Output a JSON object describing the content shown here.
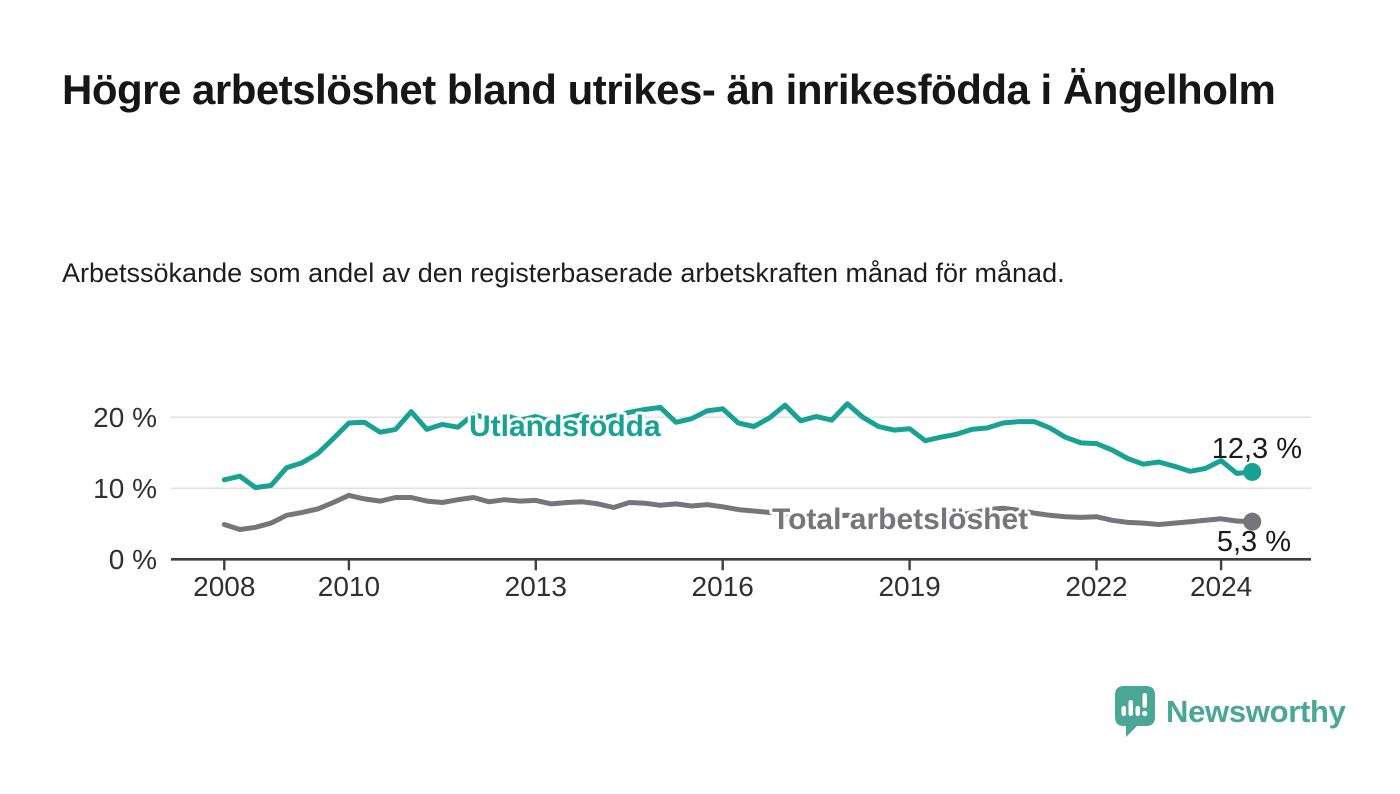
{
  "header": {
    "title": "Högre arbetslöshet bland utrikes- än inrikesfödda i Ängelholm",
    "subtitle": "Arbetssökande som andel av den registerbaserade arbetskraften månad för månad."
  },
  "chart_data": {
    "type": "line",
    "title": "Högre arbetslöshet bland utrikes- än inrikesfödda i Ängelholm",
    "subtitle": "Arbetssökande som andel av den registerbaserade arbetskraften månad för månad.",
    "unit": "%",
    "x_start_year": 2008,
    "x_step_years": 0.25,
    "x_end_year": 2024.5,
    "ylim": [
      0,
      22.5
    ],
    "grid": "horizontal",
    "legend_position": "inline-labels",
    "x_ticks": [
      {
        "year": 2008,
        "label": "2008"
      },
      {
        "year": 2010,
        "label": "2010"
      },
      {
        "year": 2013,
        "label": "2013"
      },
      {
        "year": 2016,
        "label": "2016"
      },
      {
        "year": 2019,
        "label": "2019"
      },
      {
        "year": 2022,
        "label": "2022"
      },
      {
        "year": 2024,
        "label": "2024"
      }
    ],
    "y_ticks": [
      {
        "value": 0,
        "label": "0 %"
      },
      {
        "value": 10,
        "label": "10 %"
      },
      {
        "value": 20,
        "label": "20 %"
      }
    ],
    "series": [
      {
        "name": "Utlandsfödda",
        "color": "#17a293",
        "end_label": "12,3 %",
        "end_value": 12.3,
        "values": [
          11.2,
          11.7,
          10.1,
          10.4,
          12.9,
          13.6,
          14.9,
          17.0,
          19.2,
          19.3,
          17.9,
          18.3,
          20.8,
          18.3,
          19.0,
          18.6,
          20.4,
          19.8,
          20.3,
          19.6,
          20.1,
          19.4,
          19.9,
          20.4,
          19.7,
          20.2,
          20.7,
          21.1,
          21.4,
          19.3,
          19.8,
          20.9,
          21.2,
          19.2,
          18.7,
          19.9,
          21.7,
          19.5,
          20.1,
          19.6,
          21.9,
          20.0,
          18.7,
          18.2,
          18.4,
          16.7,
          17.2,
          17.6,
          18.3,
          18.5,
          19.2,
          19.4,
          19.4,
          18.5,
          17.2,
          16.4,
          16.3,
          15.4,
          14.2,
          13.4,
          13.7,
          13.1,
          12.4,
          12.8,
          13.9,
          12.1,
          12.3
        ]
      },
      {
        "name": "Total arbetslöshet",
        "color": "#76767a",
        "end_label": "5,3 %",
        "end_value": 5.3,
        "values": [
          4.9,
          4.2,
          4.5,
          5.1,
          6.2,
          6.6,
          7.1,
          8.0,
          9.0,
          8.5,
          8.2,
          8.7,
          8.7,
          8.2,
          8.0,
          8.4,
          8.7,
          8.1,
          8.4,
          8.2,
          8.3,
          7.8,
          8.0,
          8.1,
          7.8,
          7.3,
          8.0,
          7.9,
          7.6,
          7.8,
          7.5,
          7.7,
          7.4,
          7.0,
          6.8,
          6.6,
          6.5,
          6.3,
          6.2,
          6.1,
          6.2,
          6.0,
          5.9,
          6.0,
          6.1,
          6.0,
          6.2,
          6.3,
          6.5,
          7.0,
          7.2,
          6.9,
          6.5,
          6.2,
          6.0,
          5.9,
          6.0,
          5.5,
          5.2,
          5.1,
          4.9,
          5.1,
          5.3,
          5.5,
          5.7,
          5.4,
          5.3
        ]
      }
    ]
  },
  "branding": {
    "logo_text": "Newsworthy",
    "logo_color": "#4aa696",
    "logo_icon": "bar-chart-speech-bubble"
  }
}
